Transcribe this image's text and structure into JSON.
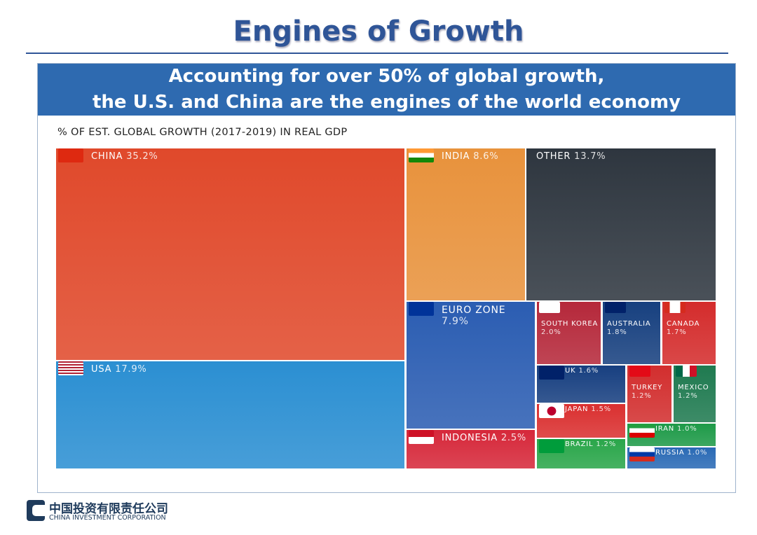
{
  "title": "Engines of Growth",
  "banner": {
    "line1": "Accounting for over 50% of global growth,",
    "line2": "the U.S. and China are the engines of the world economy"
  },
  "logo": {
    "cn": "中国投资有限责任公司",
    "en": "CHINA INVESTMENT CORPORATION"
  },
  "chart_data": {
    "type": "treemap",
    "title": "% OF EST. GLOBAL GROWTH (2017-2019) IN REAL GDP",
    "unit": "%",
    "items": [
      {
        "id": "china",
        "name": "CHINA",
        "value": "35.2%",
        "color": "#e0492b"
      },
      {
        "id": "usa",
        "name": "USA",
        "value": "17.9%",
        "color": "#2b8fd2"
      },
      {
        "id": "india",
        "name": "INDIA",
        "value": "8.6%",
        "color": "#e8923c"
      },
      {
        "id": "other",
        "name": "OTHER",
        "value": "13.7%",
        "color": "#2e363f"
      },
      {
        "id": "euro",
        "name": "EURO ZONE",
        "value": "7.9%",
        "color": "#2b5db2"
      },
      {
        "id": "indonesia",
        "name": "INDONESIA",
        "value": "2.5%",
        "color": "#d6283a"
      },
      {
        "id": "skorea",
        "name": "SOUTH KOREA",
        "value": "2.0%",
        "color": "#b5283a"
      },
      {
        "id": "australia",
        "name": "AUSTRALIA",
        "value": "1.8%",
        "color": "#17407f"
      },
      {
        "id": "canada",
        "name": "CANADA",
        "value": "1.7%",
        "color": "#d42c2c"
      },
      {
        "id": "uk",
        "name": "UK",
        "value": "1.6%",
        "color": "#173f80"
      },
      {
        "id": "japan",
        "name": "JAPAN",
        "value": "1.5%",
        "color": "#da3030"
      },
      {
        "id": "brazil",
        "name": "BRAZIL",
        "value": "1.2%",
        "color": "#2aa64a"
      },
      {
        "id": "turkey",
        "name": "TURKEY",
        "value": "1.2%",
        "color": "#d22e2e"
      },
      {
        "id": "mexico",
        "name": "MEXICO",
        "value": "1.2%",
        "color": "#1f7a50"
      },
      {
        "id": "iran",
        "name": "IRAN",
        "value": "1.0%",
        "color": "#1e9a48"
      },
      {
        "id": "russia",
        "name": "RUSSIA",
        "value": "1.0%",
        "color": "#2a6ab5"
      }
    ]
  }
}
